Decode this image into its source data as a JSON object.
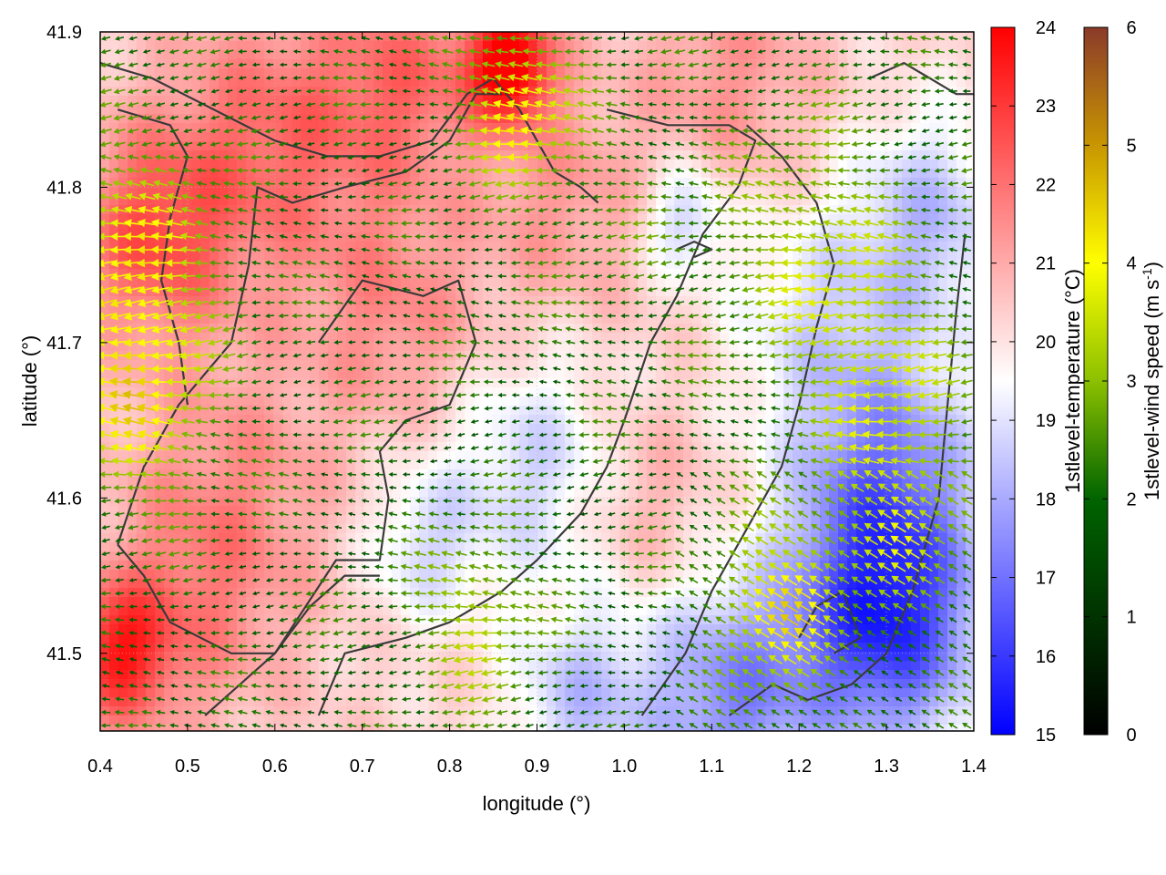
{
  "chart_data": {
    "type": "heatmap",
    "title": "",
    "xlabel": "longitude (°)",
    "ylabel": "latitude (°)",
    "xlim": [
      0.4,
      1.4
    ],
    "ylim": [
      41.45,
      41.9
    ],
    "x_ticks": [
      "0.4",
      "0.5",
      "0.6",
      "0.7",
      "0.8",
      "0.9",
      "1.0",
      "1.1",
      "1.2",
      "1.3",
      "1.4"
    ],
    "y_ticks": [
      "41.5",
      "41.6",
      "41.7",
      "41.8",
      "41.9"
    ],
    "grid": true,
    "temperature_colorbar": {
      "label": "1stlevel-temperature (°C)",
      "range": [
        15,
        24
      ],
      "ticks": [
        "15",
        "16",
        "17",
        "18",
        "19",
        "20",
        "21",
        "22",
        "23",
        "24"
      ],
      "colors": [
        "#0000ff",
        "#ffffff",
        "#ff0000"
      ]
    },
    "wind_colorbar": {
      "label_main": "1stlevel-wind speed (m s",
      "label_sup": "-1",
      "label_end": ")",
      "range": [
        0,
        6
      ],
      "ticks": [
        "0",
        "1",
        "2",
        "3",
        "4",
        "5",
        "6"
      ],
      "colors": [
        "#000000",
        "#006400",
        "#8cc000",
        "#ffff00",
        "#c89600",
        "#8b3a2a"
      ]
    },
    "temperature_anomalies": [
      {
        "lon": 0.46,
        "lat": 41.77,
        "dT": 2.2,
        "r": 0.09
      },
      {
        "lon": 0.42,
        "lat": 41.5,
        "dT": 2.8,
        "r": 0.06
      },
      {
        "lon": 0.6,
        "lat": 41.83,
        "dT": 1.8,
        "r": 0.12
      },
      {
        "lon": 0.75,
        "lat": 41.87,
        "dT": 1.6,
        "r": 0.09
      },
      {
        "lon": 0.87,
        "lat": 41.88,
        "dT": 4.0,
        "r": 0.05
      },
      {
        "lon": 0.55,
        "lat": 41.6,
        "dT": 1.2,
        "r": 0.12
      },
      {
        "lon": 0.5,
        "lat": 41.52,
        "dT": 1.0,
        "r": 0.1
      },
      {
        "lon": 0.74,
        "lat": 41.72,
        "dT": 1.2,
        "r": 0.1
      },
      {
        "lon": 0.93,
        "lat": 41.79,
        "dT": 1.0,
        "r": 0.1
      },
      {
        "lon": 1.12,
        "lat": 41.87,
        "dT": 1.1,
        "r": 0.1
      },
      {
        "lon": 1.02,
        "lat": 41.6,
        "dT": 0.8,
        "r": 0.08
      },
      {
        "lon": 0.9,
        "lat": 41.62,
        "dT": -1.6,
        "r": 0.1
      },
      {
        "lon": 0.77,
        "lat": 41.57,
        "dT": -1.4,
        "r": 0.07
      },
      {
        "lon": 1.07,
        "lat": 41.78,
        "dT": -1.8,
        "r": 0.05
      },
      {
        "lon": 1.35,
        "lat": 41.78,
        "dT": -1.9,
        "r": 0.09
      },
      {
        "lon": 1.3,
        "lat": 41.62,
        "dT": -2.5,
        "r": 0.11
      },
      {
        "lon": 1.3,
        "lat": 41.52,
        "dT": -4.3,
        "r": 0.11
      },
      {
        "lon": 1.12,
        "lat": 41.47,
        "dT": -2.8,
        "r": 0.1
      },
      {
        "lon": 0.95,
        "lat": 41.47,
        "dT": -1.8,
        "r": 0.08
      },
      {
        "lon": 1.22,
        "lat": 41.72,
        "dT": -1.2,
        "r": 0.1
      }
    ],
    "wind_jets": [
      {
        "lon": 0.43,
        "lat": 41.74,
        "speed": 4.0,
        "r": 0.1
      },
      {
        "lon": 0.45,
        "lat": 41.65,
        "speed": 3.2,
        "r": 0.07
      },
      {
        "lon": 0.88,
        "lat": 41.85,
        "speed": 4.0,
        "r": 0.06
      },
      {
        "lon": 1.22,
        "lat": 41.76,
        "speed": 3.0,
        "r": 0.1
      },
      {
        "lon": 1.3,
        "lat": 41.67,
        "speed": 3.0,
        "r": 0.09
      },
      {
        "lon": 1.18,
        "lat": 41.53,
        "speed": 4.0,
        "r": 0.07
      },
      {
        "lon": 1.32,
        "lat": 41.58,
        "speed": 3.0,
        "r": 0.07
      },
      {
        "lon": 0.83,
        "lat": 41.52,
        "speed": 3.0,
        "r": 0.07
      },
      {
        "lon": 0.72,
        "lat": 41.85,
        "speed": 1.5,
        "r": 0.08
      },
      {
        "lon": 1.0,
        "lat": 41.78,
        "speed": 1.8,
        "r": 0.12
      }
    ],
    "boundaries": [
      [
        [
          0.4,
          41.88
        ],
        [
          0.46,
          41.87
        ],
        [
          0.53,
          41.85
        ],
        [
          0.6,
          41.83
        ],
        [
          0.66,
          41.82
        ],
        [
          0.72,
          41.82
        ],
        [
          0.78,
          41.83
        ],
        [
          0.82,
          41.86
        ],
        [
          0.85,
          41.87
        ],
        [
          0.88,
          41.85
        ],
        [
          0.9,
          41.83
        ],
        [
          0.92,
          41.81
        ],
        [
          0.95,
          41.8
        ],
        [
          0.97,
          41.79
        ]
      ],
      [
        [
          0.42,
          41.85
        ],
        [
          0.48,
          41.84
        ],
        [
          0.5,
          41.82
        ],
        [
          0.48,
          41.78
        ],
        [
          0.47,
          41.74
        ],
        [
          0.49,
          41.7
        ],
        [
          0.5,
          41.66
        ]
      ],
      [
        [
          0.42,
          41.57
        ],
        [
          0.45,
          41.62
        ],
        [
          0.49,
          41.66
        ],
        [
          0.55,
          41.7
        ],
        [
          0.57,
          41.75
        ],
        [
          0.58,
          41.8
        ],
        [
          0.62,
          41.79
        ],
        [
          0.68,
          41.8
        ],
        [
          0.75,
          41.81
        ],
        [
          0.8,
          41.83
        ],
        [
          0.83,
          41.86
        ],
        [
          0.86,
          41.86
        ]
      ],
      [
        [
          0.42,
          41.57
        ],
        [
          0.45,
          41.55
        ],
        [
          0.48,
          41.52
        ],
        [
          0.55,
          41.5
        ],
        [
          0.6,
          41.5
        ],
        [
          0.64,
          41.53
        ],
        [
          0.68,
          41.55
        ],
        [
          0.72,
          41.55
        ]
      ],
      [
        [
          0.52,
          41.46
        ],
        [
          0.6,
          41.5
        ],
        [
          0.67,
          41.56
        ],
        [
          0.72,
          41.56
        ],
        [
          0.73,
          41.6
        ],
        [
          0.72,
          41.63
        ],
        [
          0.75,
          41.65
        ],
        [
          0.8,
          41.66
        ],
        [
          0.83,
          41.7
        ],
        [
          0.81,
          41.74
        ],
        [
          0.77,
          41.73
        ],
        [
          0.7,
          41.74
        ],
        [
          0.65,
          41.7
        ]
      ],
      [
        [
          0.65,
          41.46
        ],
        [
          0.68,
          41.5
        ],
        [
          0.75,
          41.51
        ],
        [
          0.8,
          41.52
        ],
        [
          0.86,
          41.54
        ],
        [
          0.9,
          41.56
        ],
        [
          0.95,
          41.59
        ],
        [
          0.98,
          41.62
        ],
        [
          1.0,
          41.65
        ],
        [
          1.03,
          41.7
        ],
        [
          1.06,
          41.73
        ],
        [
          1.09,
          41.77
        ],
        [
          1.13,
          41.8
        ],
        [
          1.15,
          41.83
        ],
        [
          1.12,
          41.84
        ],
        [
          1.05,
          41.84
        ],
        [
          0.98,
          41.85
        ]
      ],
      [
        [
          1.02,
          41.46
        ],
        [
          1.07,
          41.5
        ],
        [
          1.1,
          41.54
        ],
        [
          1.14,
          41.58
        ],
        [
          1.18,
          41.62
        ],
        [
          1.2,
          41.66
        ],
        [
          1.22,
          41.71
        ],
        [
          1.24,
          41.75
        ],
        [
          1.22,
          41.79
        ],
        [
          1.18,
          41.82
        ],
        [
          1.14,
          41.84
        ]
      ],
      [
        [
          1.12,
          41.46
        ],
        [
          1.17,
          41.48
        ],
        [
          1.21,
          41.47
        ],
        [
          1.26,
          41.48
        ],
        [
          1.3,
          41.5
        ],
        [
          1.33,
          41.54
        ],
        [
          1.36,
          41.6
        ],
        [
          1.37,
          41.66
        ],
        [
          1.38,
          41.72
        ],
        [
          1.39,
          41.77
        ]
      ],
      [
        [
          1.2,
          41.51
        ],
        [
          1.22,
          41.53
        ],
        [
          1.25,
          41.54
        ],
        [
          1.27,
          41.51
        ],
        [
          1.24,
          41.5
        ]
      ],
      [
        [
          1.06,
          41.76
        ],
        [
          1.08,
          41.765
        ],
        [
          1.1,
          41.76
        ],
        [
          1.08,
          41.755
        ]
      ],
      [
        [
          1.28,
          41.87
        ],
        [
          1.32,
          41.88
        ],
        [
          1.35,
          41.87
        ],
        [
          1.38,
          41.86
        ],
        [
          1.4,
          41.86
        ]
      ]
    ]
  }
}
